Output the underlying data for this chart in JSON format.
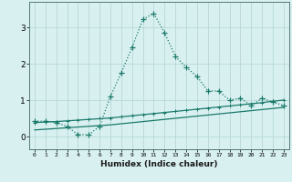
{
  "xlabel": "Humidex (Indice chaleur)",
  "bg_color": "#d8f0f0",
  "grid_color": "#b8d8d8",
  "line_color": "#1a7a6a",
  "x_ticks": [
    0,
    1,
    2,
    3,
    4,
    5,
    6,
    7,
    8,
    9,
    10,
    11,
    12,
    13,
    14,
    15,
    16,
    17,
    18,
    19,
    20,
    21,
    22,
    23
  ],
  "ylim": [
    -0.35,
    3.7
  ],
  "xlim": [
    -0.5,
    23.5
  ],
  "curve1_x": [
    0,
    1,
    2,
    3,
    4,
    5,
    6,
    7,
    8,
    9,
    10,
    11,
    12,
    13,
    14,
    15,
    16,
    17,
    18,
    19,
    20,
    21,
    22,
    23
  ],
  "curve1_y": [
    0.42,
    0.42,
    0.38,
    0.28,
    0.05,
    0.05,
    0.28,
    1.1,
    1.75,
    2.45,
    3.22,
    3.38,
    2.85,
    2.2,
    1.9,
    1.65,
    1.25,
    1.25,
    1.0,
    1.05,
    0.85,
    1.05,
    0.95,
    0.85
  ],
  "curve2_x": [
    0,
    1,
    2,
    3,
    4,
    5,
    6,
    7,
    8,
    9,
    10,
    11,
    12,
    13,
    14,
    15,
    16,
    17,
    18,
    19,
    20,
    21,
    22,
    23
  ],
  "curve2_y": [
    0.38,
    0.4,
    0.41,
    0.43,
    0.45,
    0.47,
    0.49,
    0.51,
    0.54,
    0.57,
    0.6,
    0.63,
    0.66,
    0.69,
    0.72,
    0.75,
    0.78,
    0.81,
    0.84,
    0.87,
    0.9,
    0.93,
    0.97,
    1.0
  ],
  "curve3_x": [
    0,
    1,
    2,
    3,
    4,
    5,
    6,
    7,
    8,
    9,
    10,
    11,
    12,
    13,
    14,
    15,
    16,
    17,
    18,
    19,
    20,
    21,
    22,
    23
  ],
  "curve3_y": [
    0.18,
    0.2,
    0.22,
    0.24,
    0.26,
    0.28,
    0.3,
    0.32,
    0.35,
    0.38,
    0.41,
    0.44,
    0.47,
    0.5,
    0.53,
    0.56,
    0.59,
    0.62,
    0.65,
    0.68,
    0.71,
    0.74,
    0.77,
    0.8
  ],
  "yticks": [
    0,
    1,
    2,
    3
  ]
}
